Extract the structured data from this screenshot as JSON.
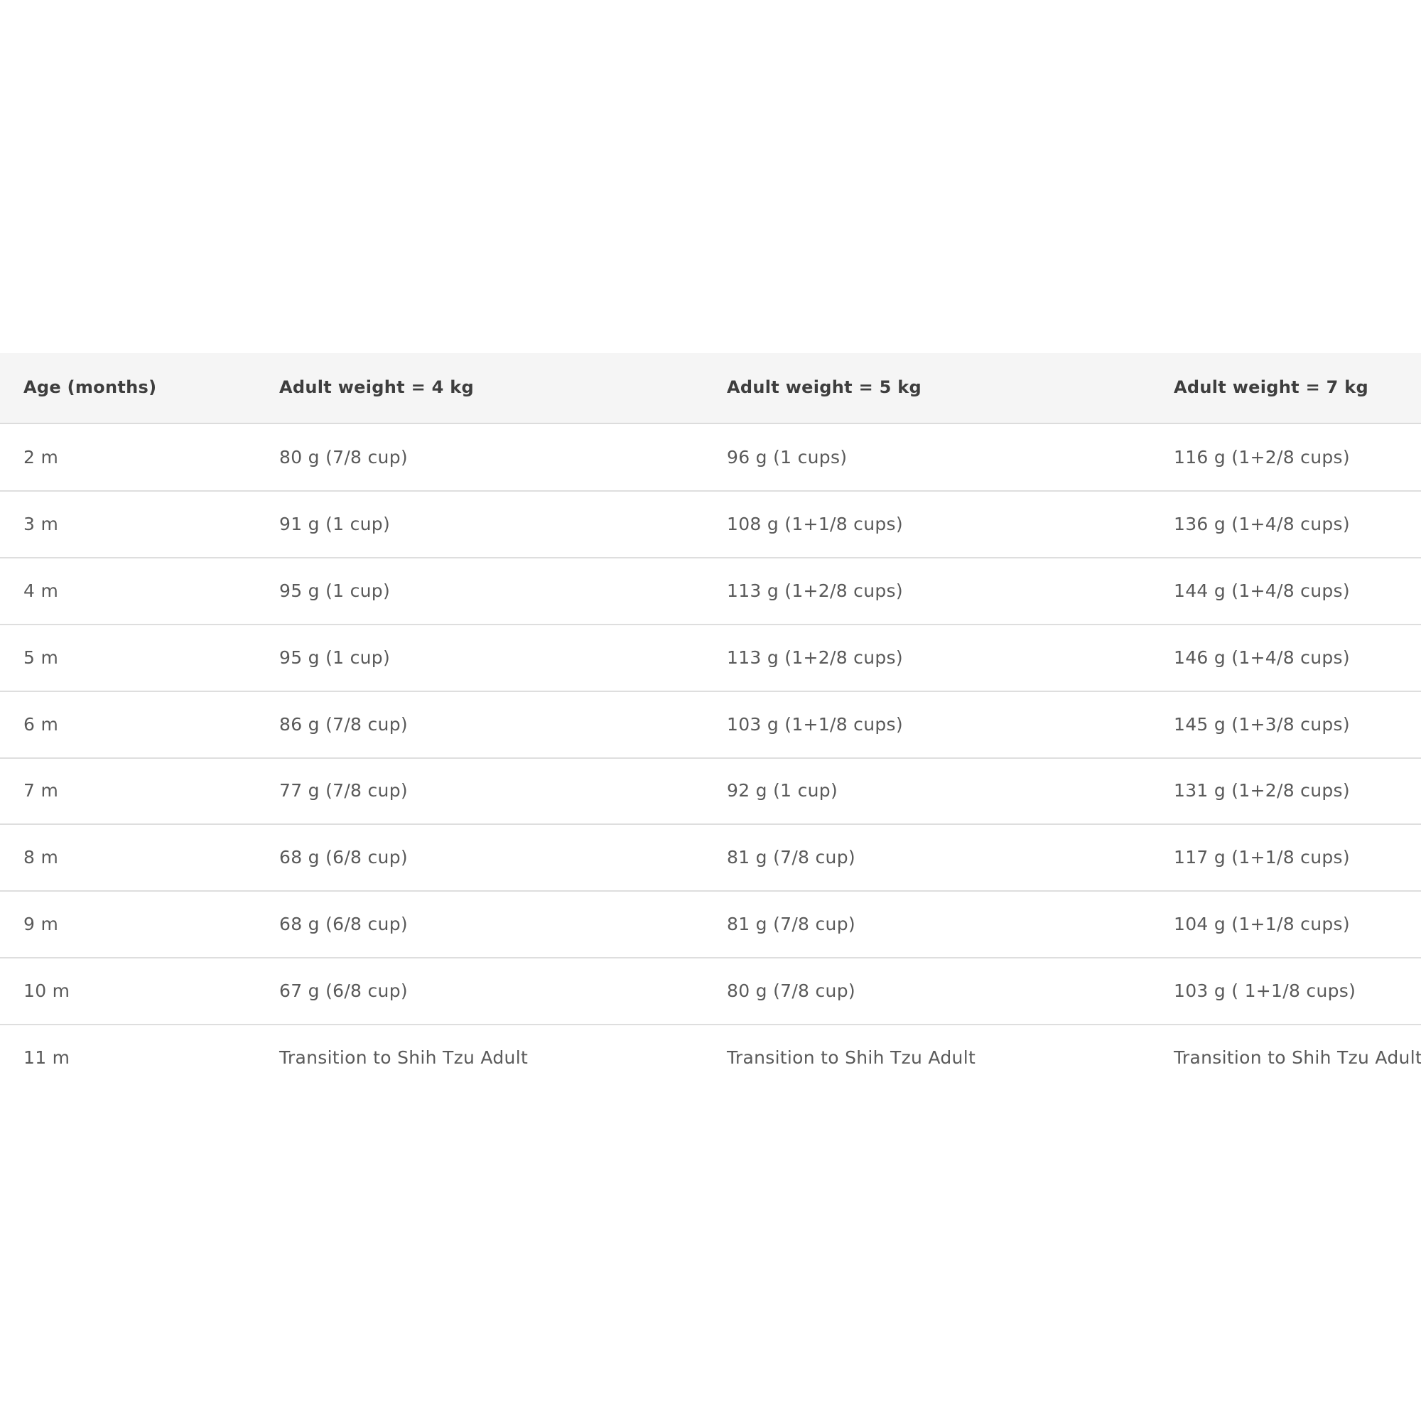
{
  "table": {
    "header": [
      "Age (months)",
      "Adult weight = 4 kg",
      "Adult weight = 5 kg",
      "Adult weight = 7 kg"
    ],
    "rows": [
      [
        "2 m",
        "80 g (7/8 cup)",
        "96 g (1 cups)",
        "116 g (1+2/8 cups)"
      ],
      [
        "3 m",
        "91 g (1 cup)",
        "108 g (1+1/8 cups)",
        "136 g (1+4/8 cups)"
      ],
      [
        "4 m",
        "95 g (1 cup)",
        "113 g (1+2/8 cups)",
        "144 g (1+4/8 cups)"
      ],
      [
        "5 m",
        "95 g (1 cup)",
        "113 g (1+2/8 cups)",
        "146 g (1+4/8 cups)"
      ],
      [
        "6 m",
        "86 g (7/8 cup)",
        "103 g (1+1/8 cups)",
        "145 g (1+3/8 cups)"
      ],
      [
        "7 m",
        "77 g (7/8 cup)",
        "92 g (1 cup)",
        "131 g (1+2/8 cups)"
      ],
      [
        "8 m",
        "68 g (6/8 cup)",
        "81 g (7/8 cup)",
        "117 g (1+1/8 cups)"
      ],
      [
        "9 m",
        "68 g (6/8 cup)",
        "81 g (7/8 cup)",
        "104 g (1+1/8 cups)"
      ],
      [
        "10 m",
        "67 g (6/8 cup)",
        "80 g (7/8 cup)",
        "103 g ( 1+1/8 cups)"
      ],
      [
        "11 m",
        "Transition to Shih Tzu Adult",
        "Transition to Shih Tzu Adult",
        "Transition to Shih Tzu Adult"
      ]
    ]
  }
}
